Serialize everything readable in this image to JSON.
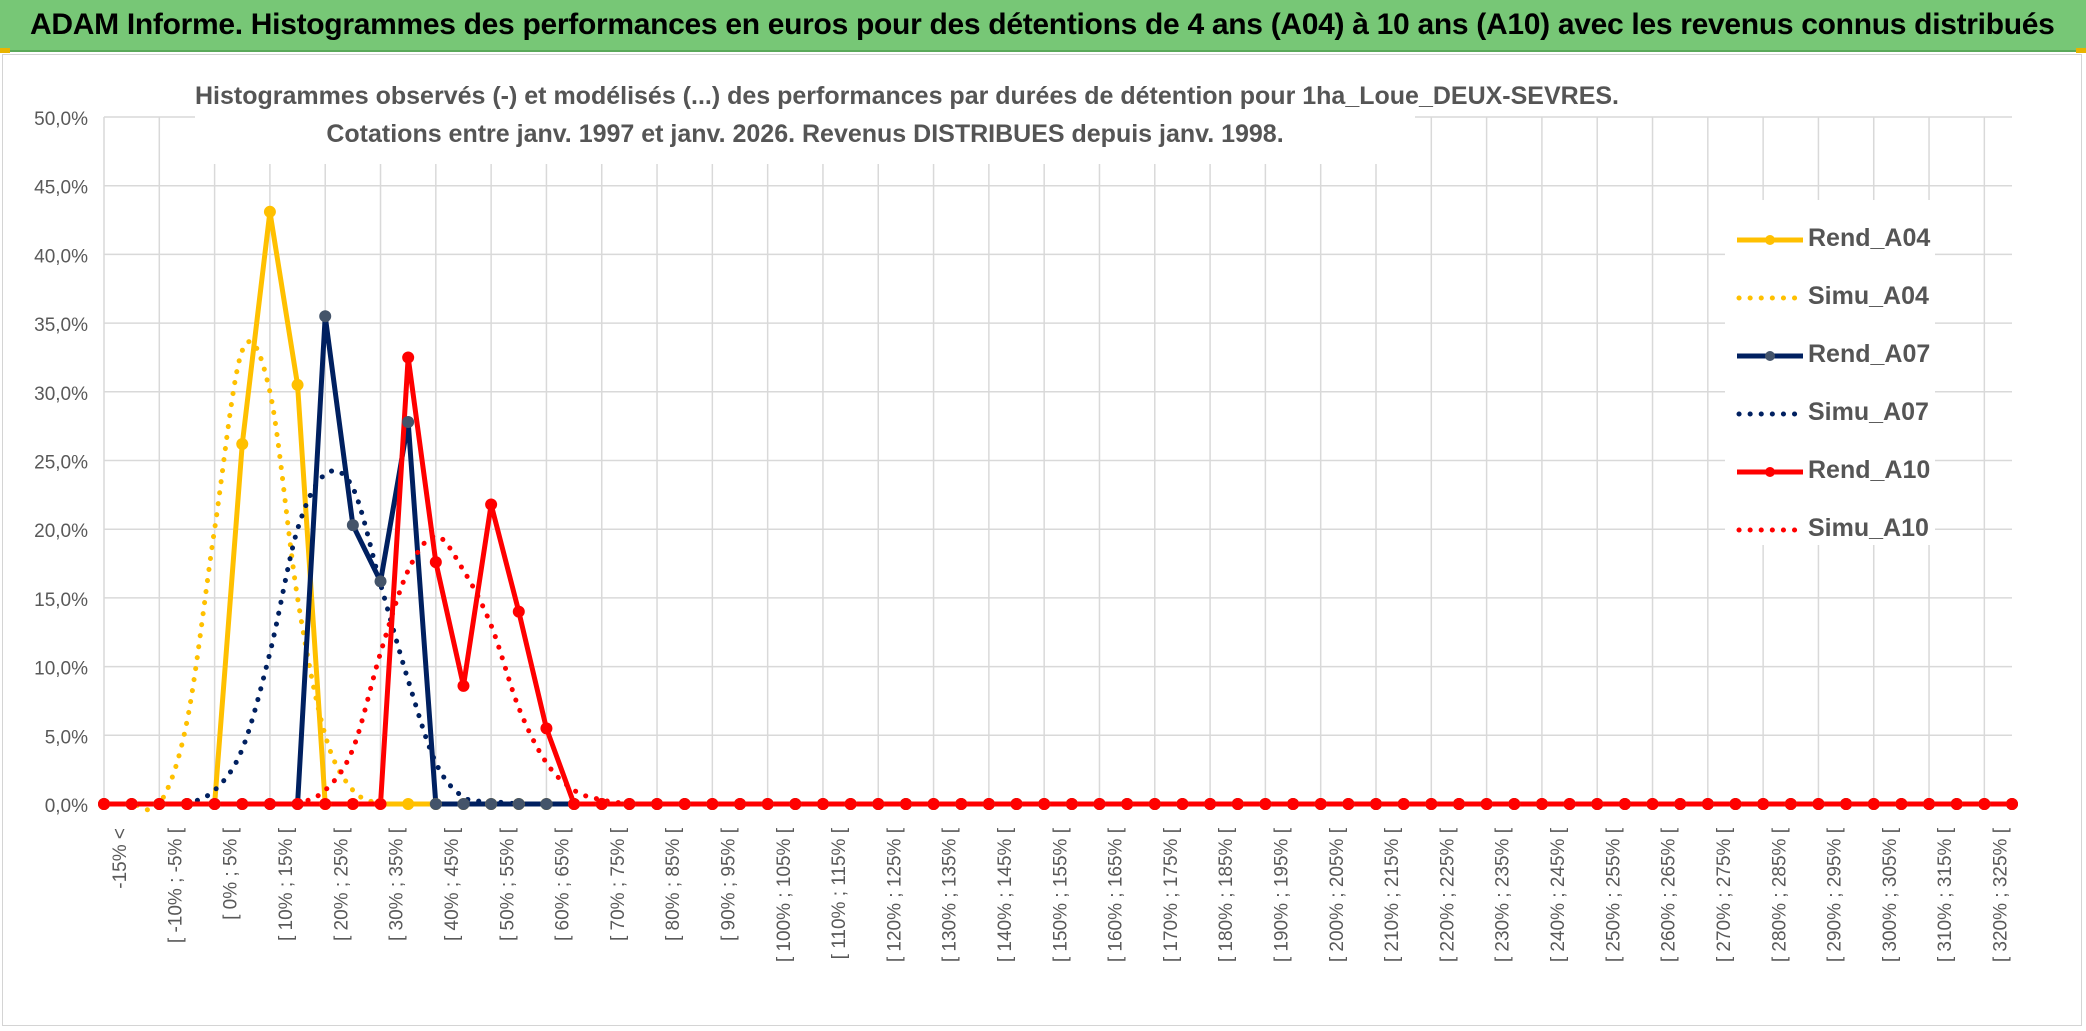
{
  "banner": {
    "title": "ADAM Informe. Histogrammes des performances en euros pour des détentions de 4 ans (A04) à 10 ans (A10) avec les revenus connus distribués"
  },
  "colors": {
    "banner_bg": "#77c776",
    "rend_a04": "#ffc000",
    "rend_a07": "#002060",
    "rend_a10": "#ff0000",
    "grid": "#d9d9d9",
    "text": "#595959"
  },
  "chart_data": {
    "type": "line",
    "title": "Histogrammes observés (-) et modélisés (...) des performances par durées de détention pour 1ha_Loue_DEUX-SEVRES.",
    "subtitle": "Cotations entre janv. 1997 et janv. 2026. Revenus DISTRIBUES depuis janv. 1998.",
    "xlabel": "",
    "ylabel": "",
    "ylim": [
      0,
      0.5
    ],
    "grid": true,
    "legend_position": "right",
    "y_ticks": [
      "0,0%",
      "5,0%",
      "10,0%",
      "15,0%",
      "20,0%",
      "25,0%",
      "30,0%",
      "35,0%",
      "40,0%",
      "45,0%",
      "50,0%"
    ],
    "x_tick_labels": [
      "-15% <",
      "[ -10% ; -5% [",
      "[ 0% ; 5% [",
      "[ 10% ; 15% [",
      "[ 20% ; 25% [",
      "[ 30% ; 35% [",
      "[ 40% ; 45% [",
      "[ 50% ; 55% [",
      "[ 60% ; 65% [",
      "[ 70% ; 75% [",
      "[ 80% ; 85% [",
      "[ 90% ; 95% [",
      "[ 100% ; 105% [",
      "[ 110% ; 115% [",
      "[ 120% ; 125% [",
      "[ 130% ; 135% [",
      "[ 140% ; 145% [",
      "[ 150% ; 155% [",
      "[ 160% ; 165% [",
      "[ 170% ; 175% [",
      "[ 180% ; 185% [",
      "[ 190% ; 195% [",
      "[ 200% ; 205% [",
      "[ 210% ; 215% [",
      "[ 220% ; 225% [",
      "[ 230% ; 235% [",
      "[ 240% ; 245% [",
      "[ 250% ; 255% [",
      "[ 260% ; 265% [",
      "[ 270% ; 275% [",
      "[ 280% ; 285% [",
      "[ 290% ; 295% [",
      "[ 300% ; 305% [",
      "[ 310% ; 315% [",
      "[ 320% ; 325% ["
    ],
    "series": [
      {
        "name": "Rend_A04",
        "style": "solid",
        "color": "#ffc000",
        "marker_color": "#ffc000",
        "values": {
          "4": 0.0,
          "5": 0.262,
          "6": 0.431,
          "7": 0.305,
          "8": 0.0,
          "12": 0.0
        }
      },
      {
        "name": "Simu_A04",
        "style": "dotted",
        "color": "#ffc000",
        "values": {
          "0": 0.0,
          "1": 0.0,
          "2": 0.0,
          "3": 0.06,
          "4": 0.2,
          "5": 0.33,
          "6": 0.3,
          "7": 0.15,
          "8": 0.05,
          "9": 0.01,
          "10": 0.0
        }
      },
      {
        "name": "Rend_A07",
        "style": "solid",
        "color": "#002060",
        "marker_color": "#44546a",
        "values": {
          "6": 0.0,
          "7": 0.0,
          "8": 0.355,
          "9": 0.203,
          "10": 0.162,
          "11": 0.278,
          "12": 0.0,
          "13": 0.0,
          "14": 0.0,
          "15": 0.0,
          "16": 0.0
        }
      },
      {
        "name": "Simu_A07",
        "style": "dotted",
        "color": "#002060",
        "values": {
          "3": 0.0,
          "4": 0.01,
          "5": 0.04,
          "6": 0.11,
          "7": 0.2,
          "8": 0.24,
          "9": 0.23,
          "10": 0.16,
          "11": 0.09,
          "12": 0.03,
          "13": 0.005,
          "14": 0.002,
          "15": 0.0
        }
      },
      {
        "name": "Rend_A10",
        "style": "solid",
        "color": "#ff0000",
        "marker_color": "#ff0000",
        "values": {
          "10": 0.0,
          "11": 0.325,
          "12": 0.176,
          "13": 0.086,
          "14": 0.218,
          "15": 0.14,
          "16": 0.055,
          "17": 0.0
        }
      },
      {
        "name": "Simu_A10",
        "style": "dotted",
        "color": "#ff0000",
        "values": {
          "7": 0.0,
          "8": 0.01,
          "9": 0.04,
          "10": 0.11,
          "11": 0.17,
          "12": 0.195,
          "13": 0.17,
          "14": 0.13,
          "15": 0.07,
          "16": 0.03,
          "17": 0.01,
          "18": 0.003,
          "19": 0.0
        }
      }
    ],
    "n_bins": 70
  }
}
